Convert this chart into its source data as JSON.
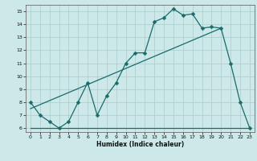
{
  "xlabel": "Humidex (Indice chaleur)",
  "xlim": [
    -0.5,
    23.5
  ],
  "ylim": [
    5.7,
    15.5
  ],
  "xticks": [
    0,
    1,
    2,
    3,
    4,
    5,
    6,
    7,
    8,
    9,
    10,
    11,
    12,
    13,
    14,
    15,
    16,
    17,
    18,
    19,
    20,
    21,
    22,
    23
  ],
  "yticks": [
    6,
    7,
    8,
    9,
    10,
    11,
    12,
    13,
    14,
    15
  ],
  "bg_color": "#cce8e8",
  "grid_color": "#aacccc",
  "line_color": "#1a6b6b",
  "line1_x": [
    0,
    1,
    2,
    3,
    4,
    5,
    6,
    7,
    8,
    9,
    10,
    11,
    12,
    13,
    14,
    15,
    16,
    17,
    18,
    19,
    20,
    21,
    22,
    23
  ],
  "line1_y": [
    8,
    7,
    6.5,
    6,
    6.5,
    8,
    9.5,
    7,
    8.5,
    9.5,
    11,
    11.8,
    11.8,
    14.2,
    14.5,
    15.2,
    14.7,
    14.8,
    13.7,
    13.8,
    13.7,
    11,
    8,
    6
  ],
  "line2_x": [
    0,
    20
  ],
  "line2_y": [
    7.5,
    13.7
  ],
  "line3_x": [
    0,
    23
  ],
  "line3_y": [
    6,
    6
  ],
  "markersize": 2.5,
  "linewidth": 0.9
}
